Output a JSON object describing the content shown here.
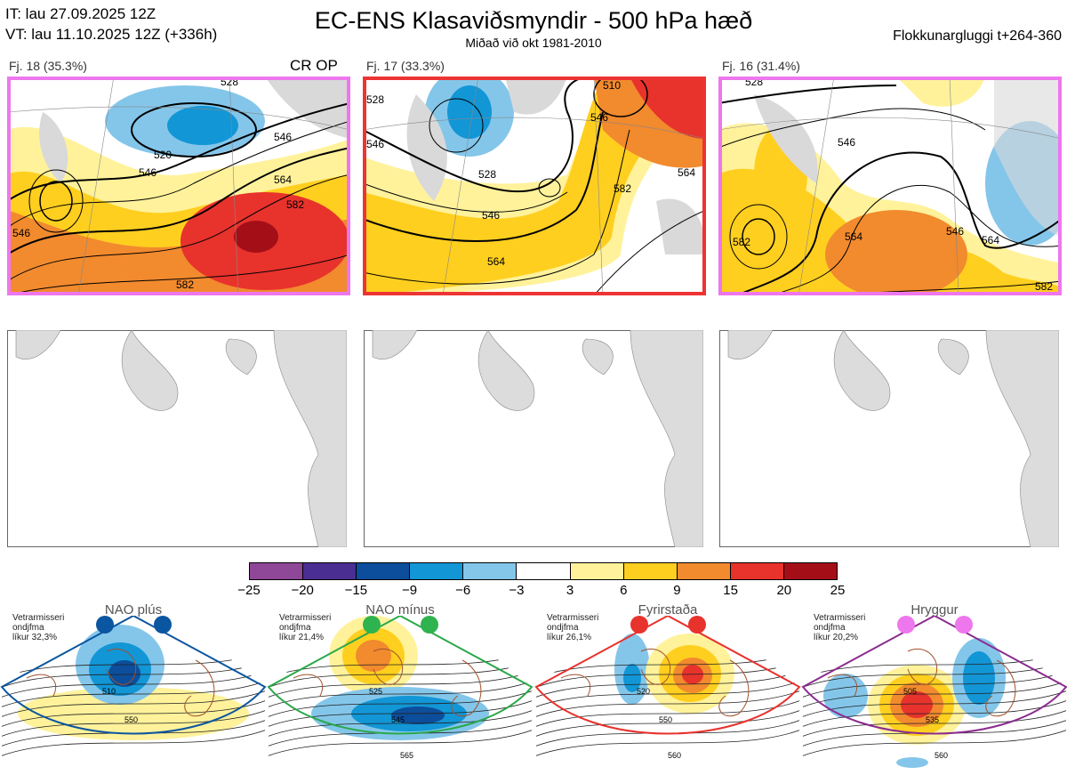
{
  "header": {
    "init_time": "IT: lau 27.09.2025 12Z",
    "valid_time": "VT: lau 11.10.2025 12Z  (+336h)",
    "title": "EC-ENS Klasaviðsmyndir - 500 hPa hæð",
    "subtitle": "Miðað við okt 1981-2010",
    "window": "Flokkunargluggi t+264-360"
  },
  "panels": [
    {
      "label": "Fj. 18 (35.3%)",
      "tag": "CR OP",
      "border": "#ee77ee",
      "contours": [
        "546",
        "520",
        "546",
        "564",
        "582",
        "546",
        "528",
        "582"
      ]
    },
    {
      "label": "Fj. 17 (33.3%)",
      "tag": "",
      "border": "#ee3333",
      "contours": [
        "528",
        "546",
        "528",
        "564",
        "546",
        "510",
        "546",
        "582",
        "564"
      ]
    },
    {
      "label": "Fj. 16 (31.4%)",
      "tag": "",
      "border": "#ee77ee",
      "contours": [
        "546",
        "564",
        "564",
        "546",
        "582",
        "528",
        "582"
      ]
    }
  ],
  "legend": {
    "ticks": [
      "−25",
      "−20",
      "−15",
      "−9",
      "−6",
      "−3",
      "3",
      "6",
      "9",
      "15",
      "20",
      "25"
    ],
    "colors": [
      "#8f4797",
      "#4a2e91",
      "#0c4e9b",
      "#1296d6",
      "#84c6ea",
      "#ffffff",
      "#fff29b",
      "#ffcf1f",
      "#f28a2e",
      "#e8322c",
      "#a40f17"
    ]
  },
  "climatology": [
    {
      "name": "NAO plús",
      "stat_line1": "Vetrarmisseri",
      "stat_line2": "ondjfma",
      "stat_line3": "líkur 32,3%",
      "color": "#0b56a0",
      "dot": "#0b56a0",
      "labels": [
        "510",
        "550"
      ]
    },
    {
      "name": "NAO mínus",
      "stat_line1": "Vetrarmisseri",
      "stat_line2": "ondjfma",
      "stat_line3": "líkur 21,4%",
      "color": "#2aa84a",
      "dot": "#2fb34f",
      "labels": [
        "525",
        "545",
        "565"
      ]
    },
    {
      "name": "Fyrirstaða",
      "stat_line1": "Vetrarmisseri",
      "stat_line2": "ondjfma",
      "stat_line3": "líkur 26,1%",
      "color": "#e8322c",
      "dot": "#e8322c",
      "labels": [
        "520",
        "550",
        "560"
      ]
    },
    {
      "name": "Hryggur",
      "stat_line1": "Vetrarmisseri",
      "stat_line2": "ondjfma",
      "stat_line3": "líkur 20,2%",
      "color": "#8b2c8f",
      "dot": "#ee77ee",
      "labels": [
        "505",
        "535",
        "560"
      ]
    }
  ]
}
